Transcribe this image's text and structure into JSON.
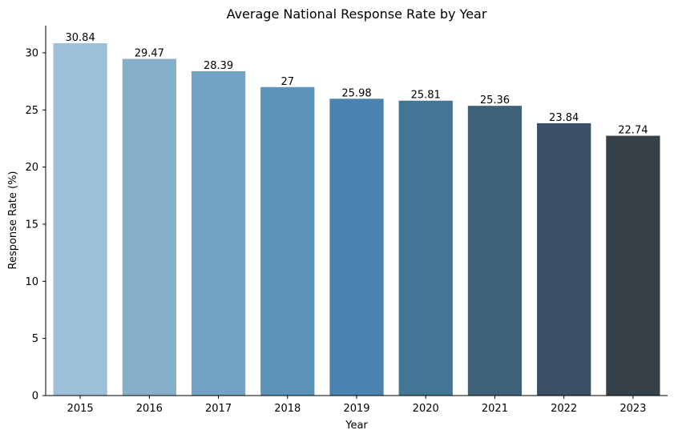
{
  "chart_data": {
    "type": "bar",
    "title": "Average National Response Rate by Year",
    "xlabel": "Year",
    "ylabel": "Response Rate (%)",
    "categories": [
      "2015",
      "2016",
      "2017",
      "2018",
      "2019",
      "2020",
      "2021",
      "2022",
      "2023"
    ],
    "values": [
      30.84,
      29.47,
      28.39,
      27,
      25.98,
      25.81,
      25.36,
      23.84,
      22.74
    ],
    "data_labels": [
      "30.84",
      "29.47",
      "28.39",
      "27",
      "25.98",
      "25.81",
      "25.36",
      "23.84",
      "22.74"
    ],
    "colors": [
      "#9dbfd8",
      "#86afcb",
      "#72a3c4",
      "#5c93b8",
      "#4a82b0",
      "#437595",
      "#3e6079",
      "#3b5067",
      "#354049"
    ],
    "ylim": [
      0,
      32.38
    ],
    "yticks": [
      0,
      5,
      10,
      15,
      20,
      25,
      30
    ],
    "grid": false,
    "legend": "none"
  }
}
